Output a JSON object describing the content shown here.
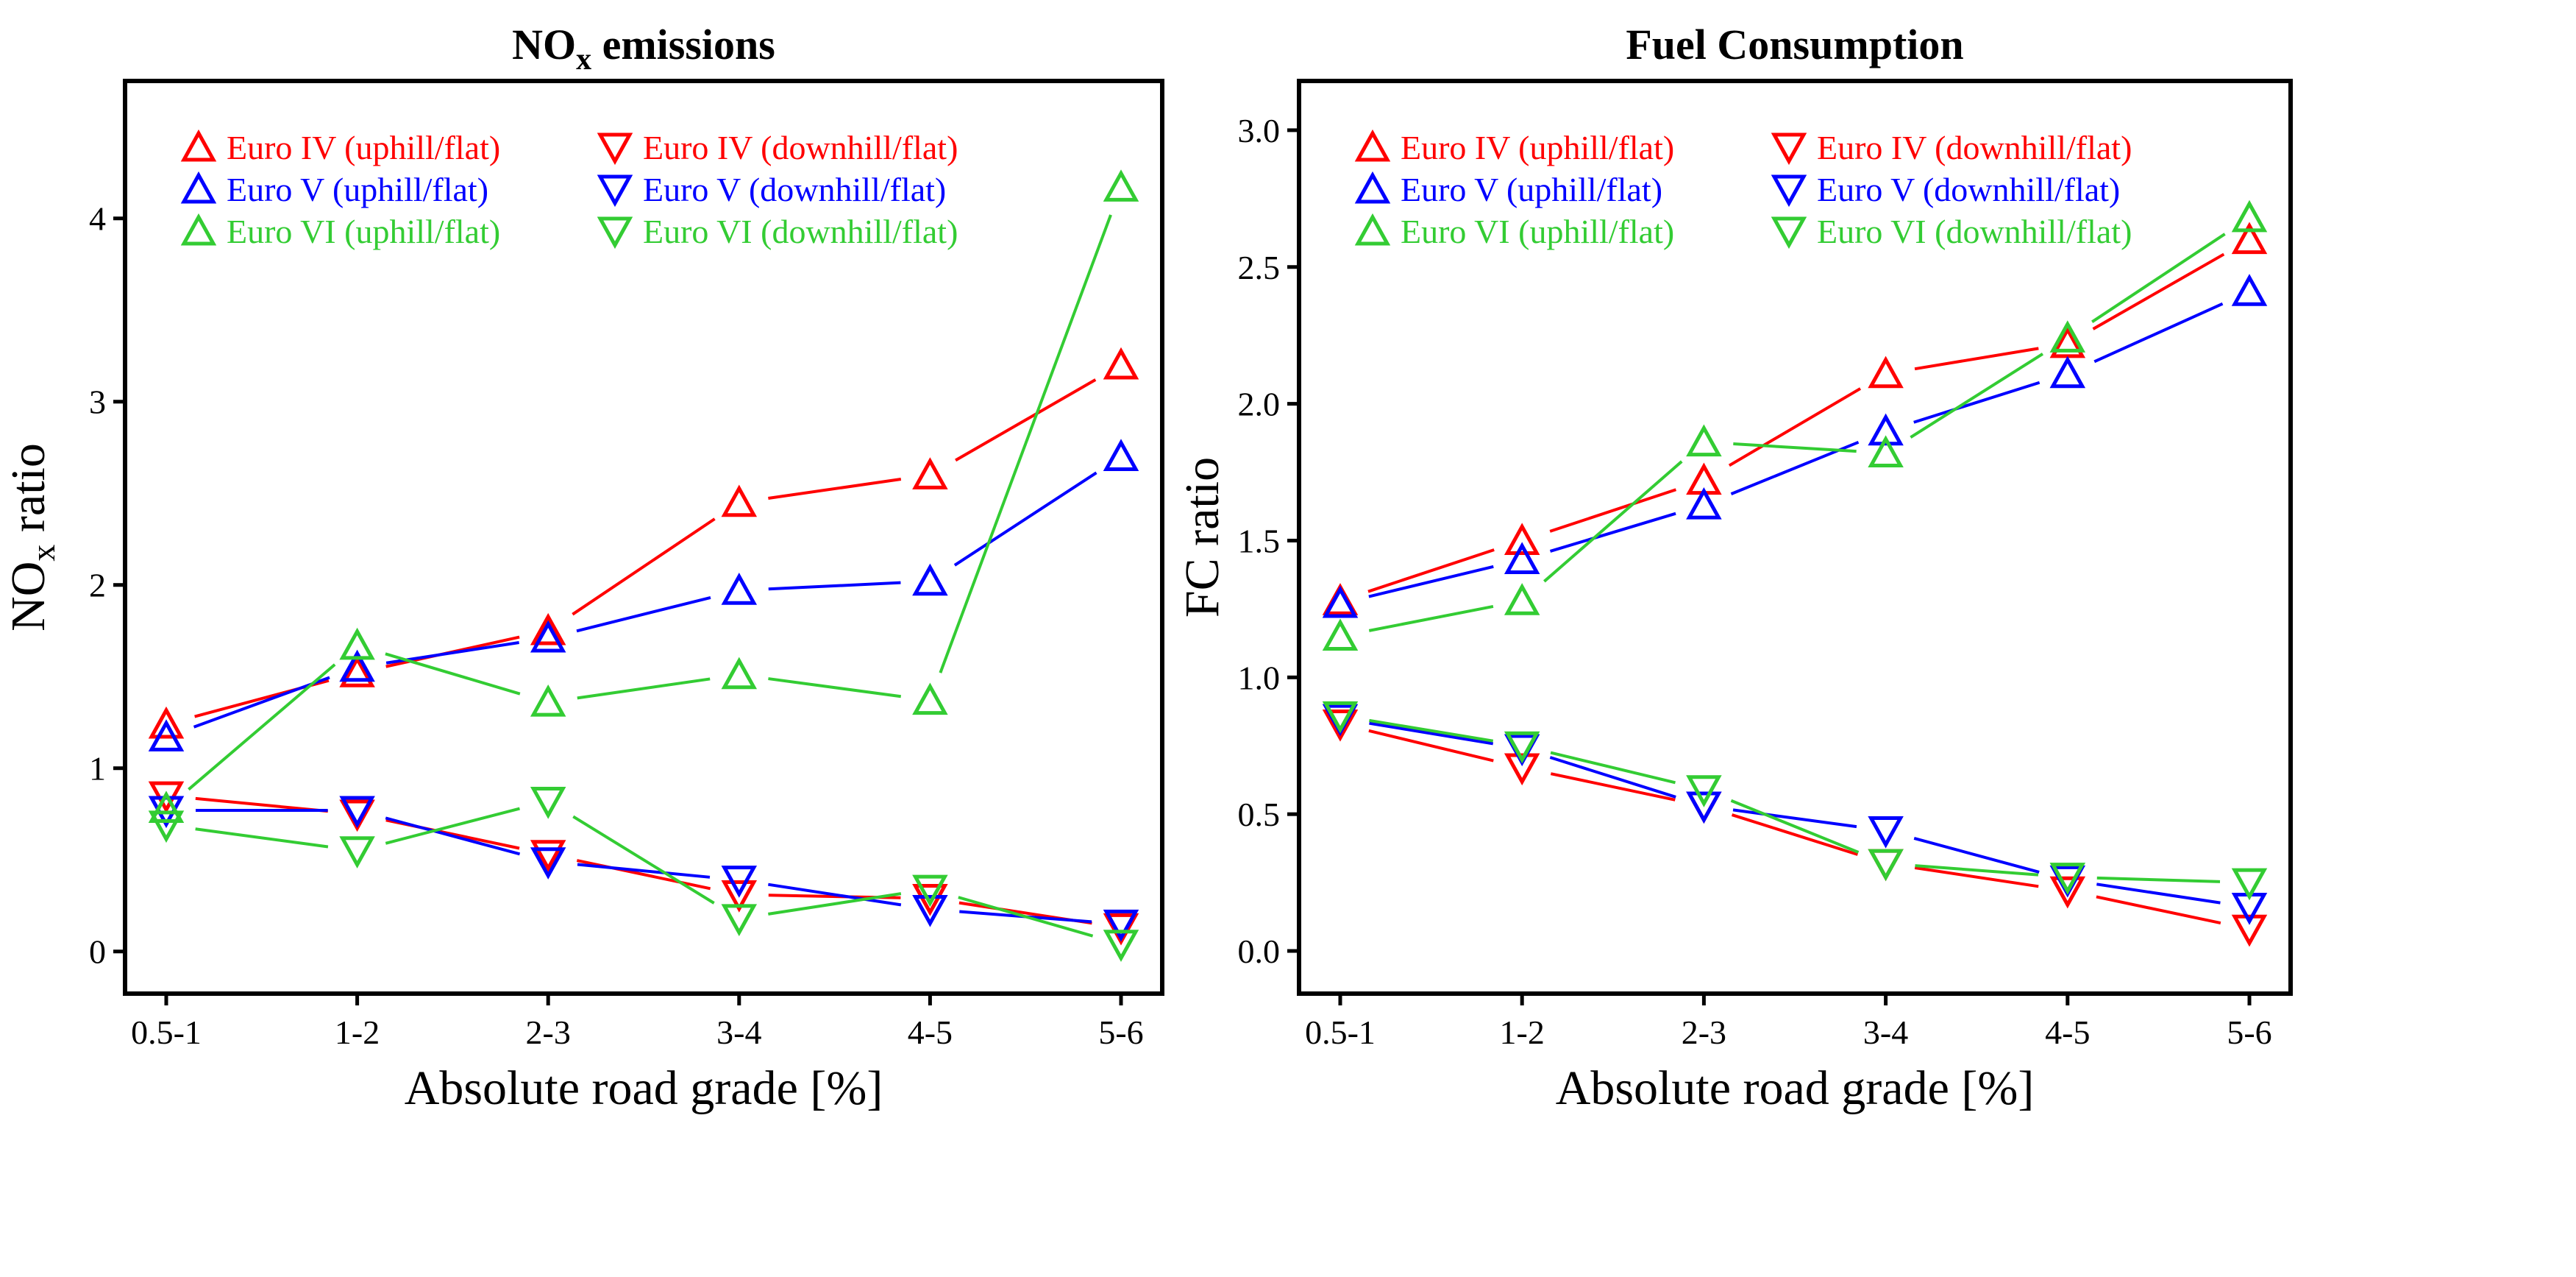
{
  "colors": {
    "euro_iv": "#ff0000",
    "euro_v": "#0000ff",
    "euro_vi": "#33cc33"
  },
  "chart_data": [
    {
      "type": "line",
      "title_main": "NO",
      "title_sub": "x",
      "title_rest": " emissions",
      "xlabel": "Absolute road grade [%]",
      "ylabel_main": "NO",
      "ylabel_sub": "x",
      "ylabel_rest": " ratio",
      "categories": [
        "0.5-1",
        "1-2",
        "2-3",
        "3-4",
        "4-5",
        "5-6"
      ],
      "ylim": [
        -0.23,
        4.75
      ],
      "yticks": [
        0,
        1,
        2,
        3,
        4
      ],
      "ytick_labels": [
        "0",
        "1",
        "2",
        "3",
        "4"
      ],
      "legend_position": "top-left",
      "series": [
        {
          "name": "Euro IV (uphill/flat)",
          "color": "#ff0000",
          "marker": "triangle-up",
          "values": [
            1.24,
            1.52,
            1.75,
            2.45,
            2.6,
            3.2
          ]
        },
        {
          "name": "Euro IV (downhill/flat)",
          "color": "#ff0000",
          "marker": "triangle-down",
          "values": [
            0.85,
            0.75,
            0.53,
            0.31,
            0.29,
            0.13
          ]
        },
        {
          "name": "Euro V (uphill/flat)",
          "color": "#0000ff",
          "marker": "triangle-up",
          "values": [
            1.17,
            1.55,
            1.71,
            1.97,
            2.02,
            2.7
          ]
        },
        {
          "name": "Euro V (downhill/flat)",
          "color": "#0000ff",
          "marker": "triangle-down",
          "values": [
            0.77,
            0.77,
            0.49,
            0.39,
            0.23,
            0.15
          ]
        },
        {
          "name": "Euro VI (uphill/flat)",
          "color": "#33cc33",
          "marker": "triangle-up",
          "values": [
            0.78,
            1.67,
            1.36,
            1.51,
            1.37,
            4.17
          ]
        },
        {
          "name": "Euro VI (downhill/flat)",
          "color": "#33cc33",
          "marker": "triangle-down",
          "values": [
            0.69,
            0.55,
            0.82,
            0.18,
            0.34,
            0.04
          ]
        }
      ]
    },
    {
      "type": "line",
      "title_main": "Fuel Consumption",
      "title_sub": "",
      "title_rest": "",
      "xlabel": "Absolute road grade [%]",
      "ylabel_main": "FC ratio",
      "ylabel_sub": "",
      "ylabel_rest": "",
      "categories": [
        "0.5-1",
        "1-2",
        "2-3",
        "3-4",
        "4-5",
        "5-6"
      ],
      "ylim": [
        -0.156,
        3.18
      ],
      "yticks": [
        0,
        0.5,
        1,
        1.5,
        2,
        2.5,
        3
      ],
      "ytick_labels": [
        "0.0",
        "0.5",
        "1.0",
        "1.5",
        "2.0",
        "2.5",
        "3.0"
      ],
      "legend_position": "top-left",
      "series": [
        {
          "name": "Euro IV (uphill/flat)",
          "color": "#ff0000",
          "marker": "triangle-up",
          "values": [
            1.28,
            1.5,
            1.72,
            2.11,
            2.22,
            2.6
          ]
        },
        {
          "name": "Euro IV (downhill/flat)",
          "color": "#ff0000",
          "marker": "triangle-down",
          "values": [
            0.83,
            0.67,
            0.53,
            0.32,
            0.22,
            0.08
          ]
        },
        {
          "name": "Euro V (uphill/flat)",
          "color": "#0000ff",
          "marker": "triangle-up",
          "values": [
            1.27,
            1.43,
            1.63,
            1.9,
            2.11,
            2.41
          ]
        },
        {
          "name": "Euro V (downhill/flat)",
          "color": "#0000ff",
          "marker": "triangle-down",
          "values": [
            0.85,
            0.74,
            0.53,
            0.44,
            0.26,
            0.16
          ]
        },
        {
          "name": "Euro VI (uphill/flat)",
          "color": "#33cc33",
          "marker": "triangle-up",
          "values": [
            1.15,
            1.28,
            1.86,
            1.82,
            2.24,
            2.68
          ]
        },
        {
          "name": "Euro VI (downhill/flat)",
          "color": "#33cc33",
          "marker": "triangle-down",
          "values": [
            0.86,
            0.75,
            0.59,
            0.32,
            0.27,
            0.25
          ]
        }
      ]
    }
  ]
}
